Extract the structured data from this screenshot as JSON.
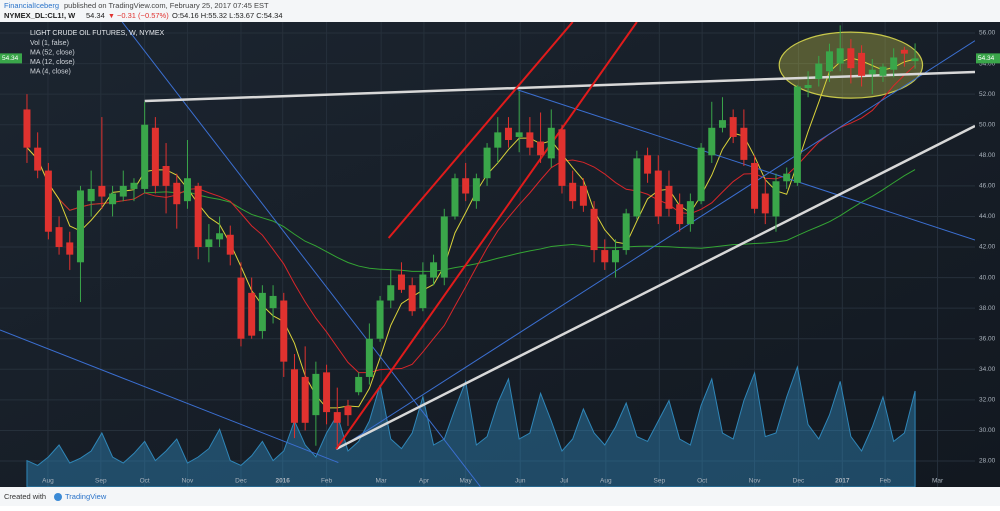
{
  "header": {
    "author": "FinancialIceberg",
    "published": "published on TradingView.com, February 25, 2017 07:45 EST",
    "symbol": "NYMEX_DL:CL1!, W",
    "price": "54.34",
    "arrow": "▼",
    "change": "−0.31 (−0.57%)",
    "quote": "O:54.16 H:55.32 L:53.67 C:54.34"
  },
  "footer": {
    "created": "Created with",
    "brand": "TradingView"
  },
  "chart_data": {
    "type": "candlestick",
    "title": "LIGHT CRUDE OIL FUTURES, W, NYMEX",
    "studies": [
      {
        "label": "Vol (1, false)"
      },
      {
        "label": "MA (52, close)",
        "period": 52,
        "color": "#34a534"
      },
      {
        "label": "MA (12, close)",
        "period": 12,
        "color": "#d8262a"
      },
      {
        "label": "MA (4, close)",
        "period": 4,
        "color": "#d9d23a"
      }
    ],
    "up_color": "#3aa64a",
    "down_color": "#e0322f",
    "volume_color": "#2f86b8",
    "open": [
      51,
      48.5,
      47,
      43.3,
      42.3,
      41,
      45,
      46,
      44.8,
      45.3,
      45.8,
      45.8,
      49.8,
      47.3,
      46.2,
      45,
      46,
      42,
      42.5,
      42.8,
      40,
      39,
      36.5,
      38,
      38.5,
      34,
      33.5,
      31,
      33.8,
      31.2,
      31.6,
      32.5,
      33.5,
      36,
      38.5,
      40.2,
      39.5,
      38,
      40,
      40,
      44,
      46.5,
      45,
      46.5,
      48.5,
      49.8,
      49.2,
      49.5,
      48.9,
      47.8,
      49.7,
      46.2,
      46,
      44.5,
      41.8,
      41,
      41.8,
      44,
      48,
      47,
      46,
      44.8,
      43.5,
      45,
      48,
      49.8,
      50.5,
      49.8,
      47.5,
      45.5,
      44,
      46.3,
      46.2,
      52.4,
      53,
      53.5,
      54,
      55,
      54.7,
      53.3,
      53.2,
      53.6,
      54.9,
      54.16
    ],
    "high": [
      52,
      49.5,
      47.5,
      44,
      43,
      46,
      47,
      50.5,
      46,
      47,
      46.5,
      51.5,
      50.5,
      48.8,
      46.8,
      49,
      46.2,
      43.5,
      44,
      43.4,
      41,
      40,
      39.5,
      39.5,
      39,
      35,
      35.5,
      34.5,
      34.3,
      32.8,
      32,
      33.8,
      37,
      38.8,
      40.5,
      41,
      40,
      41,
      41.5,
      44.5,
      46.8,
      47.5,
      46.8,
      48.8,
      50.5,
      50.5,
      52.2,
      50.5,
      50.8,
      51,
      50,
      47,
      46.5,
      45,
      42.5,
      42.5,
      44.5,
      48.3,
      48.5,
      48,
      47,
      45.5,
      45.5,
      48.8,
      51.5,
      51.8,
      51,
      51,
      48,
      46.5,
      46.8,
      47.2,
      52.6,
      53.5,
      54.5,
      55.3,
      56.5,
      55.6,
      55.2,
      54.3,
      54,
      55,
      55.1,
      55.32
    ],
    "low": [
      47.5,
      46.5,
      42.5,
      41.5,
      40.5,
      38.4,
      44,
      44.5,
      44,
      45,
      45,
      45.5,
      45.5,
      44.2,
      43.2,
      44.5,
      41.2,
      41,
      42,
      40.8,
      35.5,
      36,
      36,
      37,
      33.5,
      29.5,
      30,
      29,
      30.4,
      29,
      30.3,
      32.3,
      33,
      35.8,
      38,
      39,
      37.5,
      37.8,
      39.5,
      39.5,
      43.8,
      45,
      44.5,
      46,
      47.5,
      48.5,
      48.2,
      48,
      47.5,
      47.2,
      45.5,
      44.5,
      44.3,
      41,
      40.5,
      40,
      41.5,
      43.8,
      46.2,
      43.5,
      44,
      43,
      43,
      44.8,
      47.5,
      49.5,
      48.8,
      47.3,
      44.2,
      43.5,
      43,
      45.8,
      46,
      51.8,
      52.5,
      52.8,
      53.5,
      52.7,
      52.5,
      52,
      52.8,
      53.1,
      53.8,
      53.67
    ],
    "close": [
      48.5,
      47,
      43,
      42,
      41.5,
      45.7,
      45.8,
      45.3,
      45.5,
      46,
      46.2,
      50,
      46,
      46,
      44.8,
      46.5,
      42,
      42.5,
      42.9,
      41.5,
      36,
      36.2,
      39,
      38.8,
      34.5,
      30.5,
      30.5,
      33.7,
      31.2,
      30.5,
      31,
      33.5,
      36,
      38.5,
      39.5,
      39.2,
      37.8,
      40.2,
      41,
      44,
      46.5,
      45.5,
      46.5,
      48.5,
      49.5,
      49,
      49.5,
      48.5,
      48,
      49.8,
      46,
      45,
      44.7,
      41.8,
      41,
      41.8,
      44.2,
      47.8,
      46.8,
      44,
      44.5,
      43.5,
      45,
      48.5,
      49.8,
      50.3,
      49.2,
      47.7,
      44.5,
      44.2,
      46.3,
      46.8,
      52.5,
      52.6,
      54,
      54.8,
      55,
      53.7,
      53.2,
      53.6,
      53.8,
      54.4,
      54.65,
      54.34
    ],
    "volume": [
      22,
      18,
      25,
      35,
      20,
      24,
      30,
      45,
      25,
      20,
      28,
      38,
      22,
      30,
      40,
      20,
      25,
      32,
      48,
      22,
      18,
      26,
      38,
      22,
      30,
      55,
      35,
      25,
      45,
      60,
      30,
      38,
      55,
      85,
      40,
      32,
      45,
      75,
      35,
      40,
      65,
      88,
      35,
      42,
      70,
      90,
      40,
      45,
      78,
      55,
      30,
      40,
      65,
      45,
      35,
      50,
      70,
      42,
      38,
      55,
      72,
      40,
      35,
      68,
      90,
      45,
      40,
      72,
      95,
      42,
      45,
      75,
      100,
      52,
      40,
      60,
      88,
      42,
      30,
      50,
      75,
      38,
      45,
      80
    ],
    "xlim": [
      -2.52,
      88.6
    ],
    "ylim": [
      26.3,
      56.72
    ],
    "grid": true,
    "xticks": [
      {
        "value": 1.96,
        "label": "Aug"
      },
      {
        "value": 6.9,
        "label": "Sep"
      },
      {
        "value": 11.0,
        "label": "Oct"
      },
      {
        "value": 15.0,
        "label": "Nov"
      },
      {
        "value": 20.0,
        "label": "Dec"
      },
      {
        "value": 23.9,
        "label": "2016"
      },
      {
        "value": 28.0,
        "label": "Feb"
      },
      {
        "value": 33.1,
        "label": "Mar"
      },
      {
        "value": 37.1,
        "label": "Apr"
      },
      {
        "value": 41.0,
        "label": "May"
      },
      {
        "value": 46.1,
        "label": "Jun"
      },
      {
        "value": 50.2,
        "label": "Jul"
      },
      {
        "value": 54.1,
        "label": "Aug"
      },
      {
        "value": 59.1,
        "label": "Sep"
      },
      {
        "value": 63.1,
        "label": "Oct"
      },
      {
        "value": 68.0,
        "label": "Nov"
      },
      {
        "value": 72.1,
        "label": "Dec"
      },
      {
        "value": 76.2,
        "label": "2017"
      },
      {
        "value": 80.2,
        "label": "Feb"
      },
      {
        "value": 85.1,
        "label": "Mar"
      }
    ],
    "yticks": [
      {
        "value": 28,
        "label": "28.00"
      },
      {
        "value": 30,
        "label": "30.00"
      },
      {
        "value": 32,
        "label": "32.00"
      },
      {
        "value": 34,
        "label": "34.00"
      },
      {
        "value": 36,
        "label": "36.00"
      },
      {
        "value": 38,
        "label": "38.00"
      },
      {
        "value": 40,
        "label": "40.00"
      },
      {
        "value": 42,
        "label": "42.00"
      },
      {
        "value": 44,
        "label": "44.00"
      },
      {
        "value": 46,
        "label": "46.00"
      },
      {
        "value": 48,
        "label": "48.00"
      },
      {
        "value": 50,
        "label": "50.00"
      },
      {
        "value": 52,
        "label": "52.00"
      },
      {
        "value": 54,
        "label": "54.00"
      },
      {
        "value": 56,
        "label": "56.00"
      }
    ],
    "drawings": [
      {
        "shape": "ellipse",
        "color": "#c8c84a",
        "center": [
          77,
          53.9
        ],
        "radius": [
          6.7,
          2.16
        ]
      },
      {
        "shape": "line",
        "color": "#3b6fd1",
        "width": 1,
        "points": [
          [
            8.9,
            56.72
          ],
          [
            42.4,
            26.3
          ]
        ]
      },
      {
        "shape": "line",
        "color": "#3b6fd1",
        "width": 1,
        "points": [
          [
            -2.52,
            36.57
          ],
          [
            29.1,
            27.9
          ]
        ]
      },
      {
        "shape": "line",
        "color": "#3b6fd1",
        "width": 1,
        "points": [
          [
            29.1,
            28.79
          ],
          [
            88.6,
            55.5
          ]
        ]
      },
      {
        "shape": "line",
        "color": "#3b6fd1",
        "width": 1,
        "points": [
          [
            45.9,
            52.27
          ],
          [
            88.6,
            42.46
          ]
        ]
      },
      {
        "shape": "line",
        "color": "#d8d8d8",
        "width": 2.5,
        "points": [
          [
            11,
            51.55
          ],
          [
            88.6,
            53.45
          ]
        ]
      },
      {
        "shape": "line",
        "color": "#d8d8d8",
        "width": 2.5,
        "points": [
          [
            28.9,
            28.79
          ],
          [
            88.6,
            49.92
          ]
        ]
      },
      {
        "shape": "line",
        "color": "#e01b1b",
        "width": 2,
        "points": [
          [
            33.8,
            42.59
          ],
          [
            51,
            56.72
          ]
        ]
      },
      {
        "shape": "line",
        "color": "#e01b1b",
        "width": 2,
        "points": [
          [
            28.9,
            28.79
          ],
          [
            57,
            56.72
          ]
        ]
      }
    ]
  }
}
